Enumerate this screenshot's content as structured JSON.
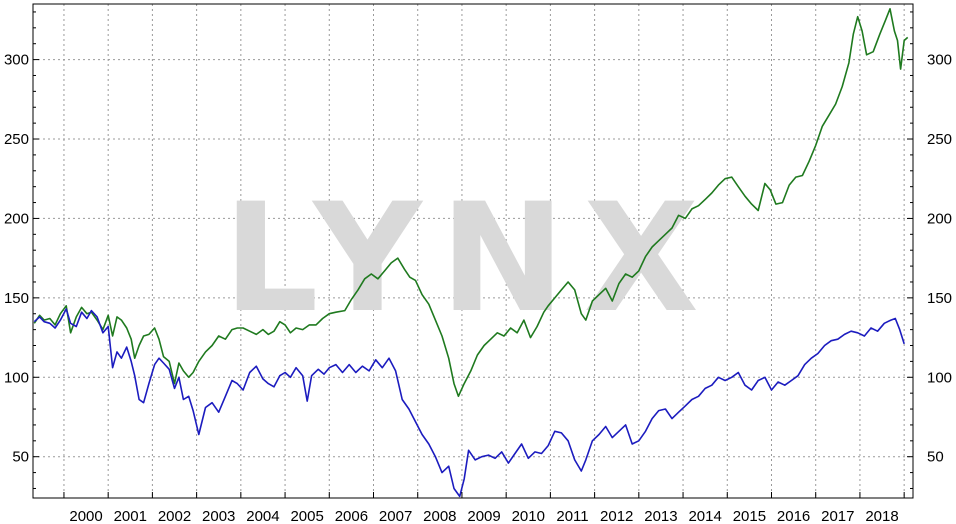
{
  "watermark": "LYNX",
  "chart_data": {
    "type": "line",
    "xlabel": "",
    "ylabel": "",
    "x_ticks": [
      "2000",
      "2001",
      "2002",
      "2003",
      "2004",
      "2005",
      "2006",
      "2007",
      "2008",
      "2009",
      "2010",
      "2011",
      "2012",
      "2013",
      "2014",
      "2015",
      "2016",
      "2017",
      "2018"
    ],
    "y_ticks": [
      50,
      100,
      150,
      200,
      250,
      300
    ],
    "xlim": [
      1999.3,
      2019.2
    ],
    "ylim": [
      24,
      335
    ],
    "grid": true,
    "legend": "none",
    "series": [
      {
        "color": "#1f7a1f",
        "points": [
          [
            1999.33,
            134
          ],
          [
            1999.45,
            139
          ],
          [
            1999.55,
            136
          ],
          [
            1999.68,
            137
          ],
          [
            1999.8,
            133
          ],
          [
            1999.92,
            140
          ],
          [
            2000.05,
            145
          ],
          [
            2000.15,
            128
          ],
          [
            2000.28,
            138
          ],
          [
            2000.4,
            144
          ],
          [
            2000.52,
            140
          ],
          [
            2000.62,
            141
          ],
          [
            2000.75,
            136
          ],
          [
            2000.88,
            130
          ],
          [
            2001.0,
            139
          ],
          [
            2001.1,
            126
          ],
          [
            2001.2,
            138
          ],
          [
            2001.3,
            136
          ],
          [
            2001.42,
            131
          ],
          [
            2001.52,
            124
          ],
          [
            2001.6,
            112
          ],
          [
            2001.7,
            120
          ],
          [
            2001.8,
            126
          ],
          [
            2001.92,
            127
          ],
          [
            2002.05,
            131
          ],
          [
            2002.15,
            124
          ],
          [
            2002.25,
            113
          ],
          [
            2002.38,
            110
          ],
          [
            2002.5,
            96
          ],
          [
            2002.6,
            109
          ],
          [
            2002.7,
            104
          ],
          [
            2002.82,
            100
          ],
          [
            2002.92,
            103
          ],
          [
            2003.05,
            110
          ],
          [
            2003.2,
            116
          ],
          [
            2003.35,
            120
          ],
          [
            2003.5,
            126
          ],
          [
            2003.65,
            124
          ],
          [
            2003.8,
            130
          ],
          [
            2003.92,
            131
          ],
          [
            2004.05,
            131
          ],
          [
            2004.2,
            129
          ],
          [
            2004.35,
            127
          ],
          [
            2004.5,
            130
          ],
          [
            2004.62,
            127
          ],
          [
            2004.75,
            129
          ],
          [
            2004.88,
            135
          ],
          [
            2005.0,
            133
          ],
          [
            2005.12,
            128
          ],
          [
            2005.25,
            131
          ],
          [
            2005.4,
            130
          ],
          [
            2005.55,
            133
          ],
          [
            2005.7,
            133
          ],
          [
            2005.85,
            137
          ],
          [
            2006.0,
            140
          ],
          [
            2006.15,
            141
          ],
          [
            2006.35,
            142
          ],
          [
            2006.5,
            149
          ],
          [
            2006.65,
            155
          ],
          [
            2006.8,
            162
          ],
          [
            2006.95,
            165
          ],
          [
            2007.1,
            162
          ],
          [
            2007.25,
            167
          ],
          [
            2007.4,
            172
          ],
          [
            2007.55,
            175
          ],
          [
            2007.7,
            168
          ],
          [
            2007.82,
            163
          ],
          [
            2007.95,
            161
          ],
          [
            2008.1,
            152
          ],
          [
            2008.25,
            146
          ],
          [
            2008.4,
            136
          ],
          [
            2008.55,
            126
          ],
          [
            2008.7,
            112
          ],
          [
            2008.82,
            96
          ],
          [
            2008.92,
            88
          ],
          [
            2009.05,
            96
          ],
          [
            2009.2,
            104
          ],
          [
            2009.35,
            114
          ],
          [
            2009.5,
            120
          ],
          [
            2009.65,
            124
          ],
          [
            2009.8,
            128
          ],
          [
            2009.95,
            126
          ],
          [
            2010.1,
            131
          ],
          [
            2010.25,
            128
          ],
          [
            2010.4,
            136
          ],
          [
            2010.55,
            125
          ],
          [
            2010.7,
            132
          ],
          [
            2010.85,
            141
          ],
          [
            2010.95,
            145
          ],
          [
            2011.1,
            150
          ],
          [
            2011.25,
            155
          ],
          [
            2011.4,
            160
          ],
          [
            2011.55,
            155
          ],
          [
            2011.7,
            140
          ],
          [
            2011.8,
            136
          ],
          [
            2011.95,
            148
          ],
          [
            2012.1,
            152
          ],
          [
            2012.25,
            156
          ],
          [
            2012.4,
            148
          ],
          [
            2012.55,
            159
          ],
          [
            2012.7,
            165
          ],
          [
            2012.85,
            163
          ],
          [
            2013.0,
            167
          ],
          [
            2013.15,
            176
          ],
          [
            2013.3,
            182
          ],
          [
            2013.45,
            186
          ],
          [
            2013.6,
            190
          ],
          [
            2013.75,
            194
          ],
          [
            2013.9,
            202
          ],
          [
            2014.05,
            200
          ],
          [
            2014.2,
            206
          ],
          [
            2014.35,
            208
          ],
          [
            2014.5,
            212
          ],
          [
            2014.65,
            216
          ],
          [
            2014.8,
            221
          ],
          [
            2014.95,
            225
          ],
          [
            2015.1,
            226
          ],
          [
            2015.25,
            220
          ],
          [
            2015.4,
            214
          ],
          [
            2015.55,
            209
          ],
          [
            2015.7,
            205
          ],
          [
            2015.85,
            222
          ],
          [
            2015.97,
            218
          ],
          [
            2016.1,
            209
          ],
          [
            2016.25,
            210
          ],
          [
            2016.4,
            221
          ],
          [
            2016.55,
            226
          ],
          [
            2016.7,
            227
          ],
          [
            2016.85,
            236
          ],
          [
            2017.0,
            246
          ],
          [
            2017.15,
            258
          ],
          [
            2017.3,
            265
          ],
          [
            2017.45,
            272
          ],
          [
            2017.6,
            283
          ],
          [
            2017.75,
            298
          ],
          [
            2017.85,
            316
          ],
          [
            2017.95,
            327
          ],
          [
            2018.05,
            318
          ],
          [
            2018.15,
            303
          ],
          [
            2018.3,
            305
          ],
          [
            2018.45,
            316
          ],
          [
            2018.58,
            325
          ],
          [
            2018.68,
            332
          ],
          [
            2018.78,
            318
          ],
          [
            2018.85,
            312
          ],
          [
            2018.92,
            294
          ],
          [
            2019.0,
            312
          ],
          [
            2019.08,
            314
          ]
        ]
      },
      {
        "color": "#1c1cbf",
        "points": [
          [
            1999.33,
            135
          ],
          [
            1999.45,
            138
          ],
          [
            1999.55,
            135
          ],
          [
            1999.68,
            134
          ],
          [
            1999.8,
            131
          ],
          [
            1999.92,
            136
          ],
          [
            2000.05,
            143
          ],
          [
            2000.15,
            134
          ],
          [
            2000.28,
            132
          ],
          [
            2000.4,
            141
          ],
          [
            2000.52,
            137
          ],
          [
            2000.62,
            142
          ],
          [
            2000.75,
            138
          ],
          [
            2000.88,
            128
          ],
          [
            2001.0,
            132
          ],
          [
            2001.1,
            106
          ],
          [
            2001.2,
            116
          ],
          [
            2001.3,
            112
          ],
          [
            2001.42,
            119
          ],
          [
            2001.52,
            110
          ],
          [
            2001.6,
            101
          ],
          [
            2001.7,
            86
          ],
          [
            2001.8,
            84
          ],
          [
            2001.92,
            96
          ],
          [
            2002.05,
            108
          ],
          [
            2002.15,
            112
          ],
          [
            2002.25,
            109
          ],
          [
            2002.38,
            105
          ],
          [
            2002.5,
            93
          ],
          [
            2002.6,
            100
          ],
          [
            2002.7,
            86
          ],
          [
            2002.82,
            88
          ],
          [
            2002.92,
            79
          ],
          [
            2003.05,
            64
          ],
          [
            2003.2,
            81
          ],
          [
            2003.35,
            84
          ],
          [
            2003.5,
            78
          ],
          [
            2003.65,
            88
          ],
          [
            2003.8,
            98
          ],
          [
            2003.92,
            96
          ],
          [
            2004.05,
            92
          ],
          [
            2004.2,
            103
          ],
          [
            2004.35,
            107
          ],
          [
            2004.5,
            99
          ],
          [
            2004.62,
            96
          ],
          [
            2004.75,
            94
          ],
          [
            2004.88,
            101
          ],
          [
            2005.0,
            103
          ],
          [
            2005.12,
            100
          ],
          [
            2005.25,
            106
          ],
          [
            2005.4,
            101
          ],
          [
            2005.5,
            85
          ],
          [
            2005.6,
            101
          ],
          [
            2005.75,
            105
          ],
          [
            2005.88,
            102
          ],
          [
            2006.0,
            106
          ],
          [
            2006.15,
            108
          ],
          [
            2006.3,
            103
          ],
          [
            2006.45,
            108
          ],
          [
            2006.6,
            103
          ],
          [
            2006.75,
            107
          ],
          [
            2006.9,
            104
          ],
          [
            2007.05,
            111
          ],
          [
            2007.2,
            106
          ],
          [
            2007.35,
            112
          ],
          [
            2007.5,
            104
          ],
          [
            2007.65,
            86
          ],
          [
            2007.8,
            80
          ],
          [
            2007.95,
            72
          ],
          [
            2008.1,
            64
          ],
          [
            2008.25,
            58
          ],
          [
            2008.4,
            50
          ],
          [
            2008.55,
            40
          ],
          [
            2008.7,
            44
          ],
          [
            2008.82,
            30
          ],
          [
            2008.95,
            25
          ],
          [
            2009.05,
            36
          ],
          [
            2009.15,
            54
          ],
          [
            2009.3,
            48
          ],
          [
            2009.45,
            50
          ],
          [
            2009.6,
            51
          ],
          [
            2009.75,
            49
          ],
          [
            2009.9,
            53
          ],
          [
            2010.05,
            46
          ],
          [
            2010.2,
            52
          ],
          [
            2010.35,
            58
          ],
          [
            2010.5,
            49
          ],
          [
            2010.65,
            53
          ],
          [
            2010.8,
            52
          ],
          [
            2010.95,
            57
          ],
          [
            2011.1,
            66
          ],
          [
            2011.25,
            65
          ],
          [
            2011.4,
            60
          ],
          [
            2011.55,
            48
          ],
          [
            2011.7,
            41
          ],
          [
            2011.8,
            48
          ],
          [
            2011.95,
            60
          ],
          [
            2012.1,
            64
          ],
          [
            2012.25,
            69
          ],
          [
            2012.4,
            62
          ],
          [
            2012.55,
            66
          ],
          [
            2012.7,
            70
          ],
          [
            2012.85,
            58
          ],
          [
            2013.0,
            60
          ],
          [
            2013.15,
            66
          ],
          [
            2013.3,
            74
          ],
          [
            2013.45,
            79
          ],
          [
            2013.6,
            80
          ],
          [
            2013.75,
            74
          ],
          [
            2013.9,
            78
          ],
          [
            2014.05,
            82
          ],
          [
            2014.2,
            86
          ],
          [
            2014.35,
            88
          ],
          [
            2014.5,
            93
          ],
          [
            2014.65,
            95
          ],
          [
            2014.8,
            100
          ],
          [
            2014.95,
            98
          ],
          [
            2015.1,
            100
          ],
          [
            2015.25,
            103
          ],
          [
            2015.4,
            95
          ],
          [
            2015.55,
            92
          ],
          [
            2015.7,
            98
          ],
          [
            2015.85,
            100
          ],
          [
            2016.0,
            92
          ],
          [
            2016.15,
            97
          ],
          [
            2016.3,
            95
          ],
          [
            2016.45,
            98
          ],
          [
            2016.6,
            101
          ],
          [
            2016.75,
            108
          ],
          [
            2016.9,
            112
          ],
          [
            2017.05,
            115
          ],
          [
            2017.2,
            120
          ],
          [
            2017.35,
            123
          ],
          [
            2017.5,
            124
          ],
          [
            2017.65,
            127
          ],
          [
            2017.8,
            129
          ],
          [
            2017.95,
            128
          ],
          [
            2018.1,
            126
          ],
          [
            2018.25,
            131
          ],
          [
            2018.4,
            129
          ],
          [
            2018.55,
            134
          ],
          [
            2018.7,
            136
          ],
          [
            2018.8,
            137
          ],
          [
            2018.9,
            130
          ],
          [
            2019.0,
            121
          ]
        ]
      }
    ]
  }
}
